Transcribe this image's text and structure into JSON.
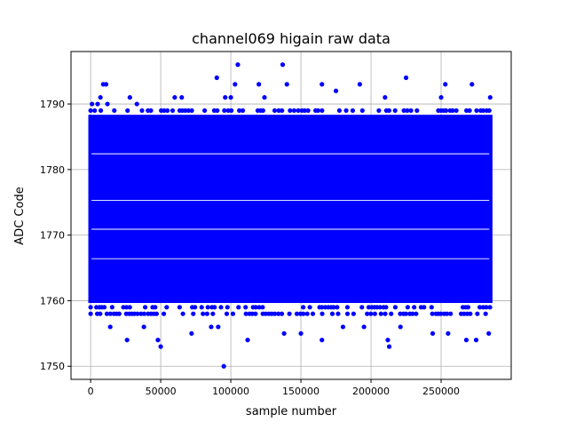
{
  "chart_data": {
    "type": "scatter",
    "title": "channel069 higain raw data",
    "xlabel": "sample number",
    "ylabel": "ADC Code",
    "xlim": [
      -14000,
      300000
    ],
    "ylim": [
      1748,
      1798
    ],
    "x_ticks": [
      0,
      50000,
      100000,
      150000,
      200000,
      250000
    ],
    "x_tick_labels": [
      "0",
      "50000",
      "100000",
      "150000",
      "200000",
      "250000"
    ],
    "y_ticks": [
      1750,
      1760,
      1770,
      1780,
      1790
    ],
    "y_tick_labels": [
      "1750",
      "1760",
      "1770",
      "1780",
      "1790"
    ],
    "grid": true,
    "marker_color": "#0000ff",
    "series": [
      {
        "bulk_band": {
          "x_range": [
            0,
            285000
          ],
          "y_range": [
            1760,
            1788
          ]
        },
        "sparse_rows": [
          {
            "y": 1789,
            "x_range": [
              0,
              285000
            ]
          },
          {
            "y": 1759,
            "x_range": [
              0,
              285000
            ]
          },
          {
            "y": 1758,
            "x_range": [
              0,
              285000
            ]
          }
        ],
        "outliers": {
          "x": [
            1000,
            5000,
            7000,
            9000,
            11000,
            12000,
            28000,
            33000,
            60000,
            65000,
            90000,
            96000,
            100000,
            103000,
            105000,
            120000,
            124000,
            137000,
            140000,
            165000,
            175000,
            192000,
            210000,
            225000,
            250000,
            253000,
            272000,
            285000,
            14000,
            26000,
            38000,
            48000,
            50000,
            72000,
            86000,
            91000,
            95000,
            112000,
            138000,
            150000,
            165000,
            180000,
            195000,
            212000,
            213000,
            221000,
            244000,
            255000,
            268000,
            275000,
            284000
          ],
          "y": [
            1790,
            1790,
            1791,
            1793,
            1793,
            1790,
            1791,
            1790,
            1791,
            1791,
            1794,
            1791,
            1791,
            1793,
            1796,
            1793,
            1791,
            1796,
            1793,
            1793,
            1792,
            1793,
            1791,
            1794,
            1791,
            1793,
            1793,
            1791,
            1756,
            1754,
            1756,
            1754,
            1753,
            1755,
            1756,
            1756,
            1750,
            1754,
            1755,
            1755,
            1754,
            1756,
            1756,
            1754,
            1753,
            1756,
            1755,
            1755,
            1754,
            1754,
            1755
          ]
        }
      }
    ]
  }
}
